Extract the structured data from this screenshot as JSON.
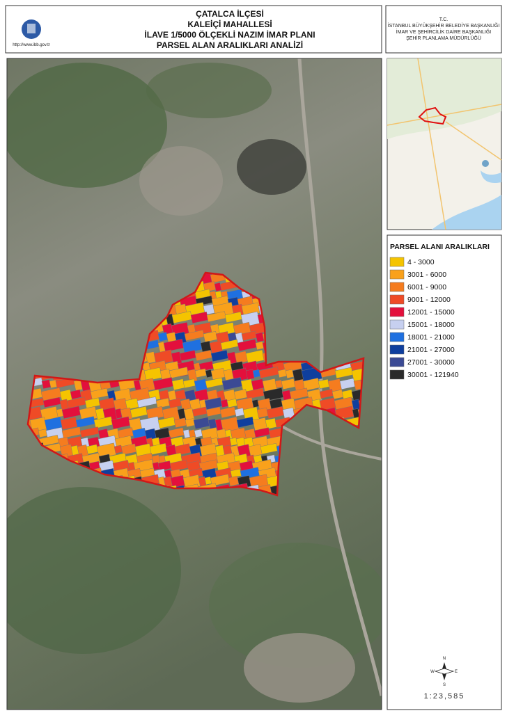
{
  "header": {
    "title_lines": [
      "ÇATALCA İLÇESİ",
      "KALEİÇİ MAHALLESİ",
      "İLAVE 1/5000 ÖLÇEKLİ NAZIM İMAR PLANI",
      "PARSEL ALAN ARALIKLARI ANALİZİ"
    ],
    "logo_url": "http://www.ibb.gov.tr",
    "institution_lines": [
      "T.C.",
      "İSTANBUL BÜYÜKŞEHİR BELEDİYE BAŞKANLIĞI",
      "İMAR VE ŞEHİRCİLİK DAİRE BAŞKANLIĞI",
      "ŞEHİR PLANLAMA MÜDÜRLÜĞÜ"
    ]
  },
  "legend": {
    "title": "PARSEL ALANI ARALIKLARI",
    "items": [
      {
        "label": "4 - 3000",
        "color": "#f5c400"
      },
      {
        "label": "3001 - 6000",
        "color": "#f9a11b"
      },
      {
        "label": "6001 - 9000",
        "color": "#f57c1f"
      },
      {
        "label": "9001 - 12000",
        "color": "#ef4b26"
      },
      {
        "label": "12001 - 15000",
        "color": "#e3103c"
      },
      {
        "label": "15001 - 18000",
        "color": "#c7d0f0"
      },
      {
        "label": "18001 - 21000",
        "color": "#1f70e0"
      },
      {
        "label": "21001 - 27000",
        "color": "#0f3f9e"
      },
      {
        "label": "27001 - 30000",
        "color": "#3b4a94"
      },
      {
        "label": "30001 - 121940",
        "color": "#2a2a2a"
      }
    ]
  },
  "compass": {
    "n": "N",
    "e": "E",
    "s": "S",
    "w": "W"
  },
  "scale": "1:23,585"
}
